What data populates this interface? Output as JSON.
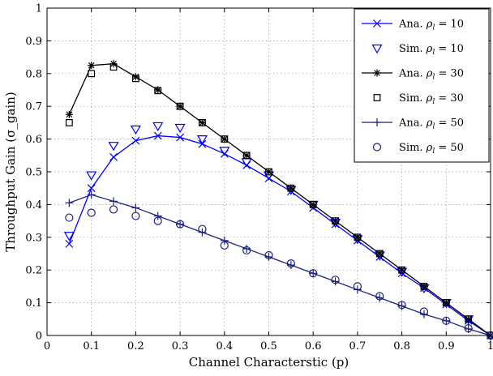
{
  "chart_data": {
    "type": "line",
    "xlabel": "Channel Characterstic (p)",
    "ylabel": "Throughput Gain (σ_gain)",
    "xlim": [
      0,
      1
    ],
    "ylim": [
      0,
      1
    ],
    "grid": true,
    "legend_position": "top-right",
    "x_ticks": [
      "0",
      "0.1",
      "0.2",
      "0.3",
      "0.4",
      "0.5",
      "0.6",
      "0.7",
      "0.8",
      "0.9",
      "1"
    ],
    "y_ticks": [
      "0",
      "0.1",
      "0.2",
      "0.3",
      "0.4",
      "0.5",
      "0.6",
      "0.7",
      "0.8",
      "0.9",
      "1"
    ],
    "series": [
      {
        "name": "Ana. ρl = 10",
        "color": "#0000ff",
        "marker": "x",
        "line": true,
        "x": [
          0.05,
          0.1,
          0.15,
          0.2,
          0.25,
          0.3,
          0.35,
          0.4,
          0.45,
          0.5,
          0.55,
          0.6,
          0.65,
          0.7,
          0.75,
          0.8,
          0.85,
          0.9,
          0.95,
          1.0
        ],
        "y": [
          0.28,
          0.45,
          0.545,
          0.595,
          0.61,
          0.605,
          0.585,
          0.555,
          0.52,
          0.48,
          0.44,
          0.39,
          0.34,
          0.29,
          0.24,
          0.19,
          0.145,
          0.095,
          0.045,
          0.0
        ]
      },
      {
        "name": "Sim. ρl = 10",
        "color": "#0000ff",
        "marker": "triangle-down",
        "line": false,
        "x": [
          0.05,
          0.1,
          0.15,
          0.2,
          0.25,
          0.3,
          0.35,
          0.4,
          0.45,
          0.5,
          0.55,
          0.6,
          0.65,
          0.7,
          0.75,
          0.8,
          0.85,
          0.9,
          0.95,
          1.0
        ],
        "y": [
          0.305,
          0.49,
          0.58,
          0.63,
          0.64,
          0.635,
          0.6,
          0.565,
          0.53,
          0.49,
          0.445,
          0.4,
          0.345,
          0.295,
          0.245,
          0.195,
          0.145,
          0.1,
          0.05,
          0.0
        ]
      },
      {
        "name": "Ana. ρl = 30",
        "color": "#000000",
        "marker": "star",
        "line": true,
        "x": [
          0.05,
          0.1,
          0.15,
          0.2,
          0.25,
          0.3,
          0.35,
          0.4,
          0.45,
          0.5,
          0.55,
          0.6,
          0.65,
          0.7,
          0.75,
          0.8,
          0.85,
          0.9,
          0.95,
          1.0
        ],
        "y": [
          0.675,
          0.825,
          0.83,
          0.79,
          0.75,
          0.7,
          0.65,
          0.6,
          0.55,
          0.5,
          0.45,
          0.4,
          0.35,
          0.3,
          0.25,
          0.2,
          0.15,
          0.1,
          0.05,
          0.0
        ]
      },
      {
        "name": "Sim. ρl = 30",
        "color": "#000000",
        "marker": "square",
        "line": false,
        "x": [
          0.05,
          0.1,
          0.15,
          0.2,
          0.25,
          0.3,
          0.35,
          0.4,
          0.45,
          0.5,
          0.55,
          0.6,
          0.65,
          0.7,
          0.75,
          0.8,
          0.85,
          0.9,
          0.95,
          1.0
        ],
        "y": [
          0.65,
          0.8,
          0.82,
          0.785,
          0.748,
          0.7,
          0.65,
          0.6,
          0.55,
          0.5,
          0.45,
          0.4,
          0.35,
          0.3,
          0.25,
          0.2,
          0.15,
          0.1,
          0.05,
          0.0
        ]
      },
      {
        "name": "Ana. ρl = 50",
        "color": "#1a237e",
        "marker": "plus",
        "line": true,
        "x": [
          0.05,
          0.1,
          0.15,
          0.2,
          0.25,
          0.3,
          0.35,
          0.4,
          0.45,
          0.5,
          0.55,
          0.6,
          0.65,
          0.7,
          0.75,
          0.8,
          0.85,
          0.9,
          0.95,
          1.0
        ],
        "y": [
          0.405,
          0.43,
          0.41,
          0.39,
          0.365,
          0.34,
          0.315,
          0.29,
          0.265,
          0.24,
          0.215,
          0.19,
          0.165,
          0.14,
          0.115,
          0.09,
          0.065,
          0.045,
          0.02,
          0.0
        ]
      },
      {
        "name": "Sim. ρl = 50",
        "color": "#1a237e",
        "marker": "circle",
        "line": false,
        "x": [
          0.05,
          0.1,
          0.15,
          0.2,
          0.25,
          0.3,
          0.35,
          0.4,
          0.45,
          0.5,
          0.55,
          0.6,
          0.65,
          0.7,
          0.75,
          0.8,
          0.85,
          0.9,
          0.95,
          1.0
        ],
        "y": [
          0.36,
          0.375,
          0.385,
          0.365,
          0.35,
          0.34,
          0.325,
          0.275,
          0.26,
          0.245,
          0.22,
          0.19,
          0.17,
          0.15,
          0.12,
          0.093,
          0.073,
          0.045,
          0.022,
          0.0
        ]
      }
    ]
  }
}
